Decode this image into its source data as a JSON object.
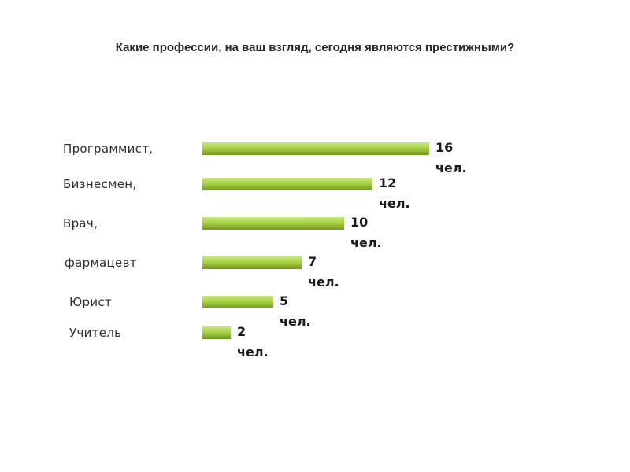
{
  "chart_data": {
    "type": "bar",
    "orientation": "horizontal",
    "title": "Какие профессии, на ваш взгляд, сегодня являются престижными?",
    "categories": [
      "Программист,",
      "Бизнесмен,",
      "Врач,",
      "фармацевт",
      "Юрист",
      "Учитель"
    ],
    "values": [
      16,
      12,
      10,
      7,
      5,
      2
    ],
    "unit": "чел.",
    "value_labels": [
      "16",
      "12",
      "10",
      "7",
      "5",
      "2"
    ],
    "bar_color": "#a9d243",
    "grid": false,
    "legend": "none"
  }
}
